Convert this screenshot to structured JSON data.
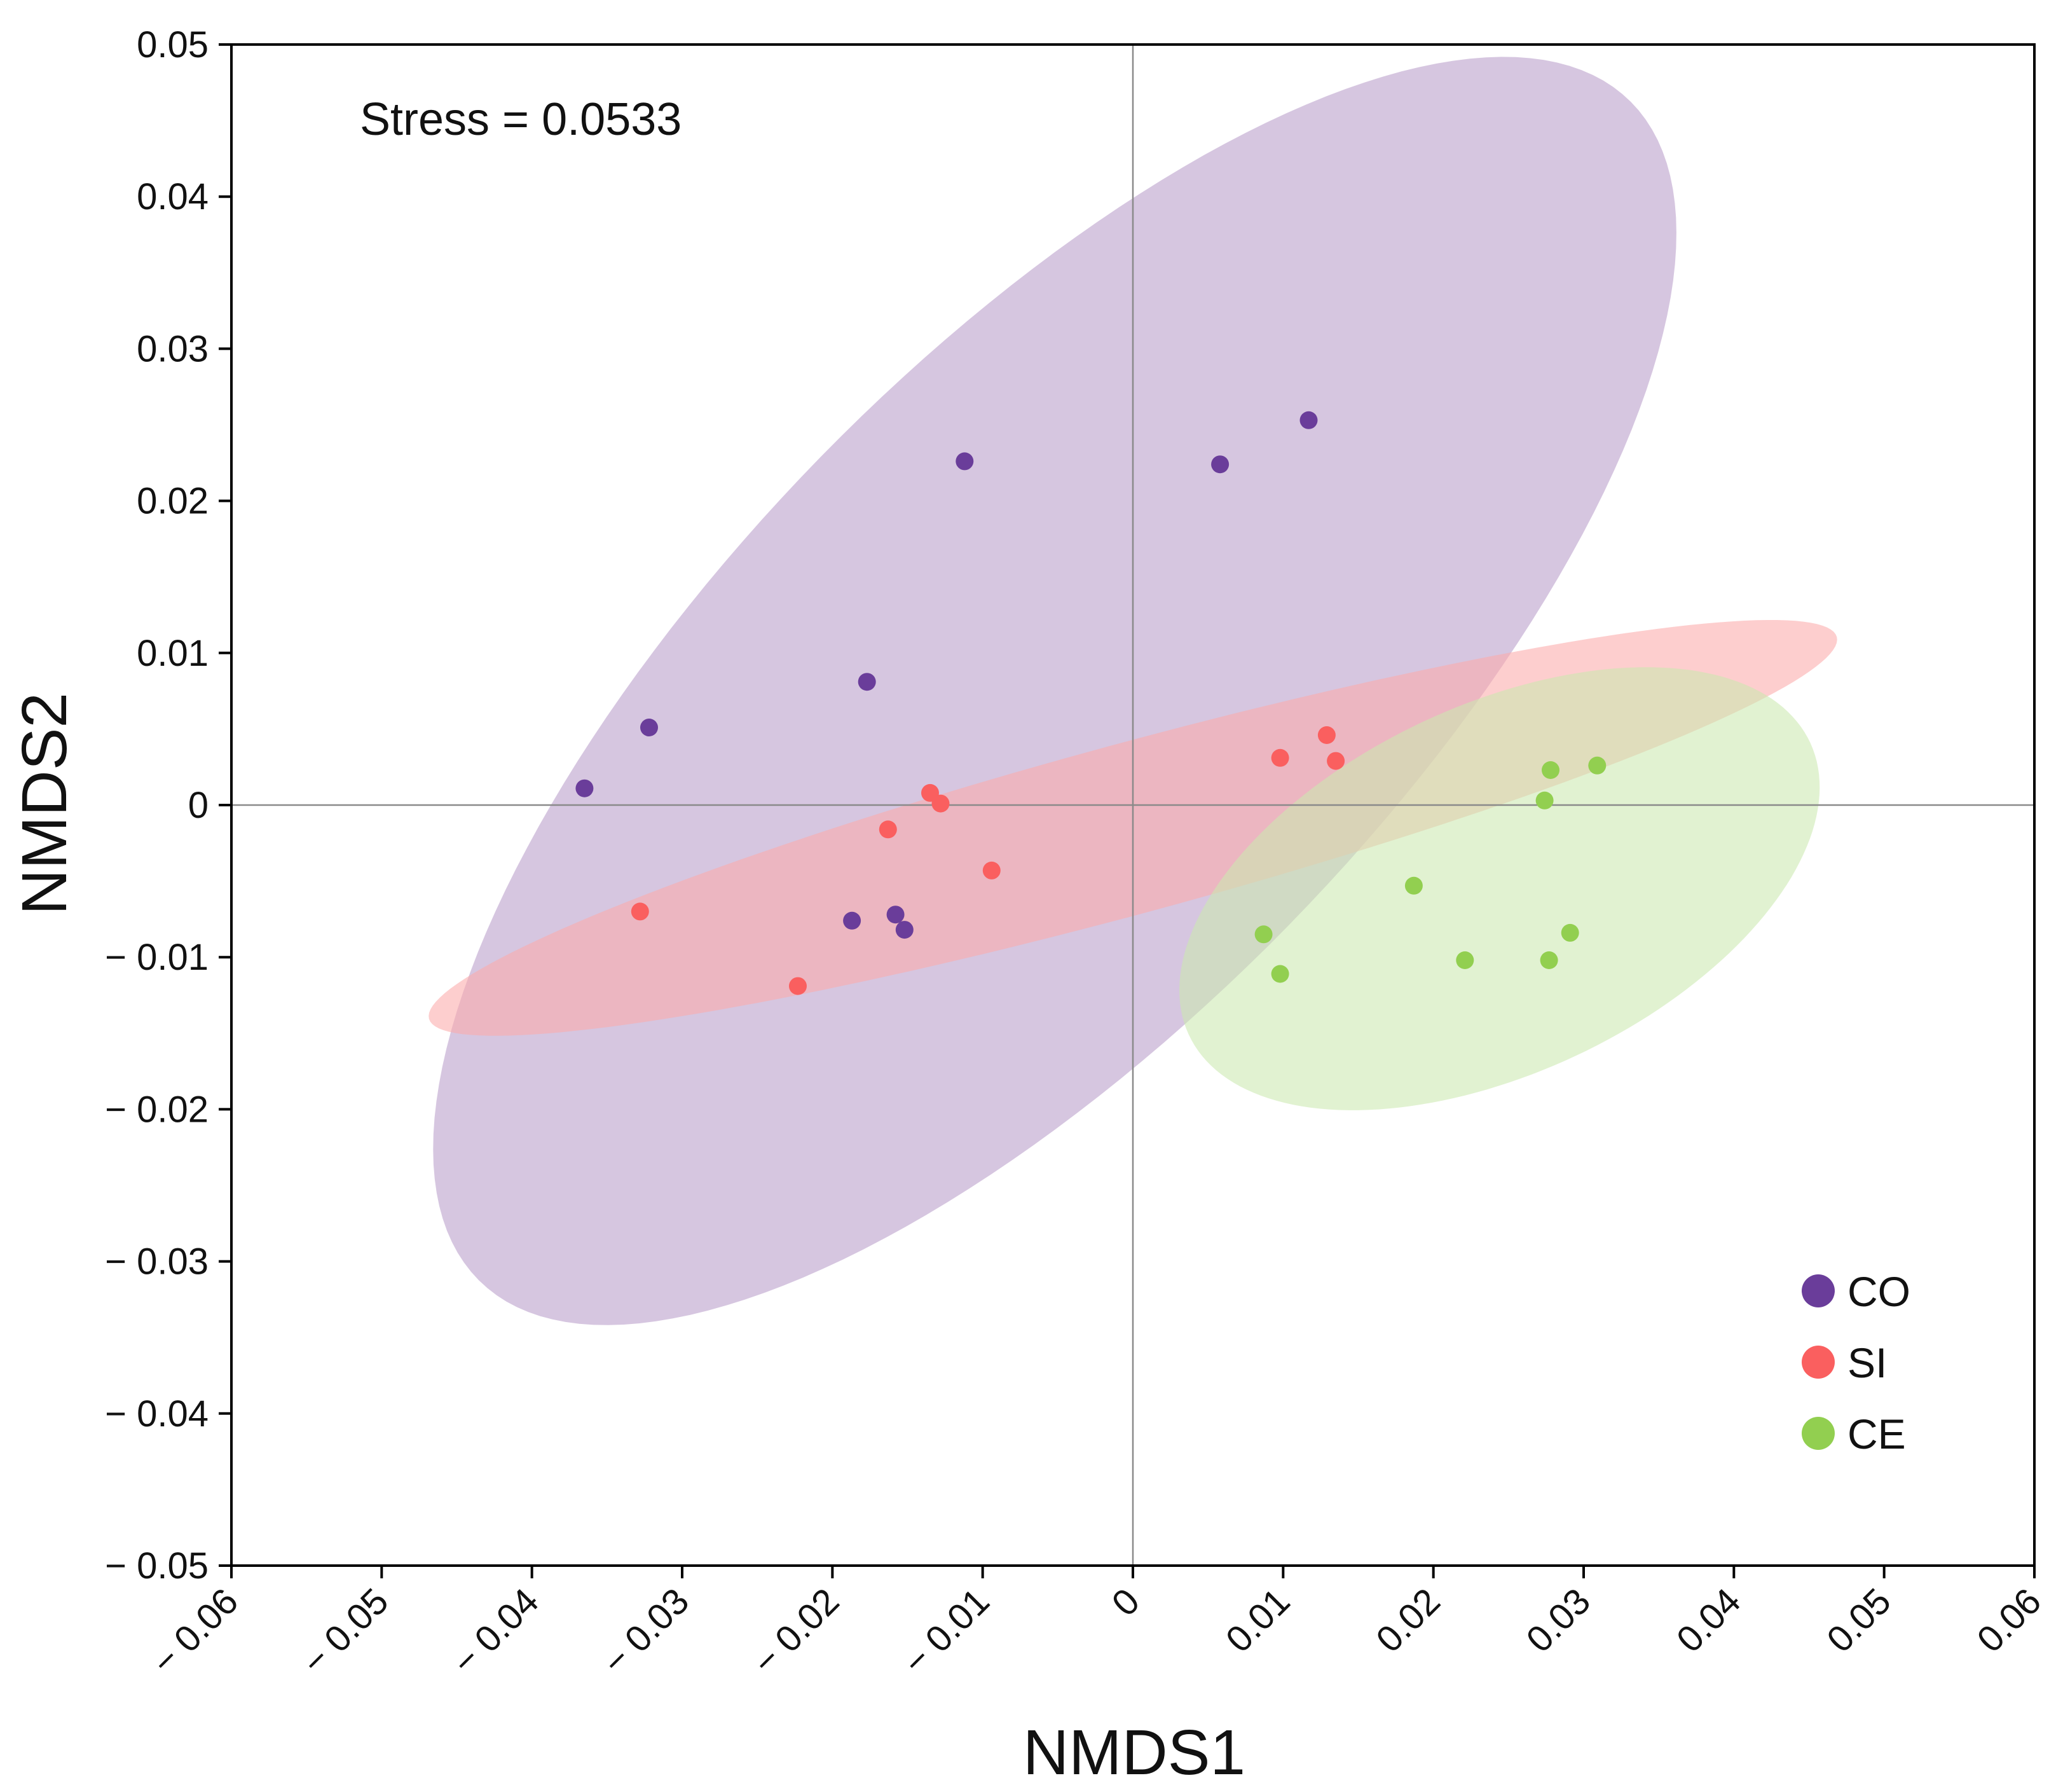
{
  "chart_data": {
    "type": "scatter",
    "title": "",
    "xlabel": "NMDS1",
    "ylabel": "NMDS2",
    "xlim": [
      -0.06,
      0.06
    ],
    "ylim": [
      -0.05,
      0.05
    ],
    "xticks": [
      -0.06,
      -0.05,
      -0.04,
      -0.03,
      -0.02,
      -0.01,
      0,
      0.01,
      0.02,
      0.03,
      0.04,
      0.05,
      0.06
    ],
    "yticks": [
      -0.05,
      -0.04,
      -0.03,
      -0.02,
      -0.01,
      0,
      0.01,
      0.02,
      0.03,
      0.04,
      0.05
    ],
    "xtick_labels": [
      "− 0.06",
      "− 0.05",
      "− 0.04",
      "− 0.03",
      "− 0.02",
      "− 0.01",
      "0",
      "0.01",
      "0.02",
      "0.03",
      "0.04",
      "0.05",
      "0.06"
    ],
    "ytick_labels": [
      "− 0.05",
      "− 0.04",
      "− 0.03",
      "− 0.02",
      "− 0.01",
      "0",
      "0.01",
      "0.02",
      "0.03",
      "0.04",
      "0.05"
    ],
    "grid": false,
    "reference_lines": {
      "x": 0,
      "y": 0
    },
    "annotation": "Stress = 0.0533",
    "legend_position": "bottom-right",
    "series": [
      {
        "name": "CO",
        "color": "#6a3d9a",
        "ellipse_color": "#b89cc9",
        "ellipse": {
          "cx": -0.0052,
          "cy": 0.0075,
          "rx": 0.0545,
          "ry": 0.0219,
          "angle_deg": 45.3
        },
        "points": [
          [
            -0.0112,
            0.0226
          ],
          [
            0.0058,
            0.0224
          ],
          [
            0.0117,
            0.0253
          ],
          [
            -0.0177,
            0.0081
          ],
          [
            -0.0322,
            0.0051
          ],
          [
            -0.0365,
            0.0011
          ],
          [
            -0.0187,
            -0.0076
          ],
          [
            -0.0158,
            -0.0072
          ],
          [
            -0.0152,
            -0.0082
          ]
        ]
      },
      {
        "name": "SI",
        "color": "#fa5f5f",
        "ellipse_color": "#fbaaaa",
        "ellipse": {
          "cx": 0.0,
          "cy": -0.0015,
          "rx": 0.0485,
          "ry": 0.0056,
          "angle_deg": 15.0
        },
        "points": [
          [
            0.0098,
            0.0031
          ],
          [
            0.0129,
            0.0046
          ],
          [
            0.0135,
            0.0029
          ],
          [
            -0.0135,
            0.0008
          ],
          [
            -0.0128,
            0.0001
          ],
          [
            -0.0163,
            -0.0016
          ],
          [
            -0.0094,
            -0.0043
          ],
          [
            -0.0328,
            -0.007
          ],
          [
            -0.0223,
            -0.0119
          ]
        ]
      },
      {
        "name": "CE",
        "color": "#92cf50",
        "ellipse_color": "#cce8b0",
        "ellipse": {
          "cx": 0.0244,
          "cy": -0.0055,
          "rx": 0.0228,
          "ry": 0.0121,
          "angle_deg": 24.8
        },
        "points": [
          [
            0.0278,
            0.0023
          ],
          [
            0.0309,
            0.0026
          ],
          [
            0.0274,
            0.0003
          ],
          [
            0.0187,
            -0.0053
          ],
          [
            0.0087,
            -0.0085
          ],
          [
            0.0098,
            -0.0111
          ],
          [
            0.0221,
            -0.0102
          ],
          [
            0.0277,
            -0.0102
          ],
          [
            0.0291,
            -0.0084
          ]
        ]
      }
    ]
  }
}
